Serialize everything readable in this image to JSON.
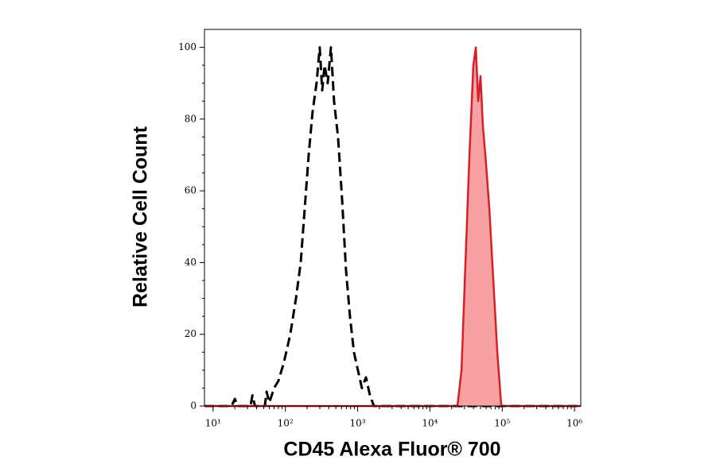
{
  "chart_data": {
    "type": "line",
    "x_scale": "log",
    "xlabel": "CD45 Alexa Fluor® 700",
    "ylabel": "Relative Cell Count",
    "xlim": [
      7.6,
      1220000
    ],
    "ylim": [
      0,
      105
    ],
    "xticks": [
      {
        "value": 10,
        "label": "10¹"
      },
      {
        "value": 100,
        "label": "10²"
      },
      {
        "value": 1000,
        "label": "10³"
      },
      {
        "value": 10000,
        "label": "10⁴"
      },
      {
        "value": 100000,
        "label": "10⁵"
      },
      {
        "value": 1000000,
        "label": "10⁶"
      }
    ],
    "yticks": [
      0,
      20,
      40,
      60,
      80,
      100
    ],
    "series": [
      {
        "color": "#000000",
        "line_style": "dashed",
        "filled": false,
        "x": [
          7.6,
          18,
          20,
          22,
          33,
          35,
          38,
          52,
          55,
          60,
          70,
          80,
          95,
          117,
          140,
          163,
          185,
          210,
          238,
          270,
          299,
          323,
          349,
          385,
          427,
          472,
          536,
          608,
          690,
          783,
          889,
          1009,
          1146,
          1303,
          1479,
          1679,
          1220000
        ],
        "values": [
          0,
          0,
          2,
          0,
          0,
          3,
          0,
          0,
          4,
          1,
          5,
          7,
          12,
          20,
          30,
          40,
          55,
          70,
          82,
          90,
          100,
          88,
          95,
          90,
          100,
          85,
          75,
          58,
          38,
          25,
          15,
          10,
          5,
          8,
          3,
          0,
          0
        ]
      },
      {
        "color": "#d61f26",
        "fill": "#f7a1a3",
        "line_style": "solid",
        "filled": true,
        "x": [
          7.6,
          24000,
          27300,
          31000,
          35200,
          39900,
          43100,
          46500,
          50100,
          54100,
          58500,
          66400,
          75300,
          85500,
          97100,
          1220000
        ],
        "values": [
          0,
          0,
          10,
          40,
          70,
          95,
          100,
          85,
          92,
          78,
          70,
          55,
          35,
          15,
          0,
          0
        ]
      }
    ]
  }
}
